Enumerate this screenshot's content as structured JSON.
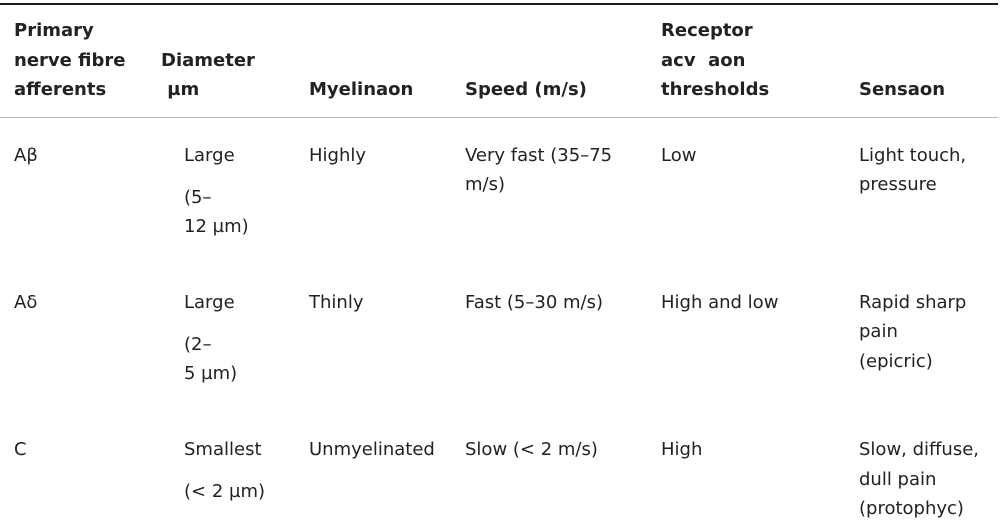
{
  "headers": {
    "afferents": [
      "Primary",
      "nerve fibre",
      "afferents"
    ],
    "diameter": [
      "Diameter",
      " µm"
    ],
    "myelination": "Myelinaon",
    "speed": "Speed (m/s)",
    "thresholds": [
      "Receptor",
      "acv  aon",
      "thresholds"
    ],
    "sensation": "Sensaon"
  },
  "rows": [
    {
      "fibre": "Aβ",
      "diameter": [
        "Large",
        "(5–",
        "12 µm)"
      ],
      "myelination": "Highly",
      "speed": [
        "Very fast (35–75",
        "m/s)"
      ],
      "threshold": "Low",
      "sensation": [
        "Light touch,",
        "pressure"
      ]
    },
    {
      "fibre": "Aδ",
      "diameter": [
        "Large",
        "(2–",
        "5 µm)"
      ],
      "myelination": "Thinly",
      "speed": [
        "Fast (5–30 m/s)"
      ],
      "threshold": "High and low",
      "sensation": [
        "Rapid sharp",
        "pain",
        "(epicric)"
      ]
    },
    {
      "fibre": "C",
      "diameter": [
        "Smallest",
        "(< 2 µm)"
      ],
      "myelination": "Unmyelinated",
      "speed": [
        "Slow (< 2 m/s)"
      ],
      "threshold": "High",
      "sensation": [
        "Slow, diffuse,",
        "dull pain",
        "(protophyc)"
      ]
    }
  ]
}
